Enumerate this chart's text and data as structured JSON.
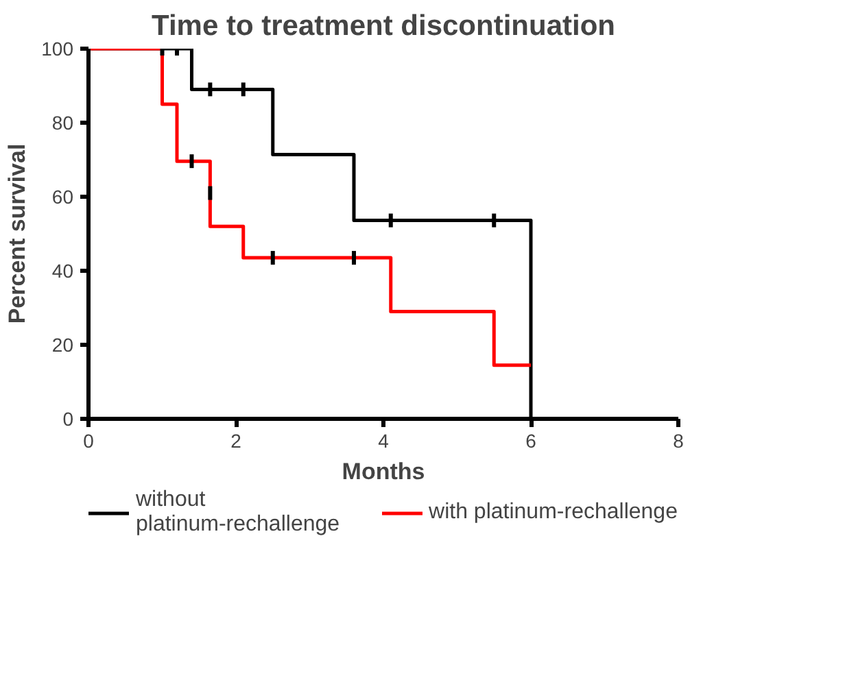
{
  "chart_data": {
    "type": "step",
    "title": "Time to treatment discontinuation",
    "xlabel": "Months",
    "ylabel": "Percent survival",
    "xlim": [
      0,
      8
    ],
    "xticks": [
      0,
      2,
      4,
      6,
      8
    ],
    "ylim": [
      0,
      100
    ],
    "yticks": [
      0,
      20,
      40,
      60,
      80,
      100
    ],
    "grid": false,
    "legend": "bottom",
    "series": [
      {
        "name": "without\nplatinum-rechallenge",
        "color": "#000000",
        "x": [
          0,
          1.4,
          2.5,
          3.6,
          6
        ],
        "values": [
          100,
          89,
          71.4,
          53.6,
          0
        ]
      },
      {
        "name": "with platinum-rechallenge",
        "color": "#ff0000",
        "x": [
          0,
          1,
          1.2,
          1.65,
          2.1,
          4.1,
          5.5,
          6
        ],
        "values": [
          100,
          85,
          69.6,
          52,
          43.5,
          29,
          14.5,
          14.5
        ]
      },
      {
        "type": "scatter",
        "color": "#000000",
        "x": [
          1.0,
          1.2,
          1.65,
          2.1,
          4.1,
          5.5
        ],
        "values": [
          100,
          100,
          89,
          89,
          53.6,
          53.6
        ]
      },
      {
        "type": "scatter",
        "color": "#000000",
        "x": [
          1.4,
          1.65,
          2.5,
          3.6
        ],
        "values": [
          69.6,
          61,
          43.5,
          43.5
        ]
      }
    ]
  }
}
